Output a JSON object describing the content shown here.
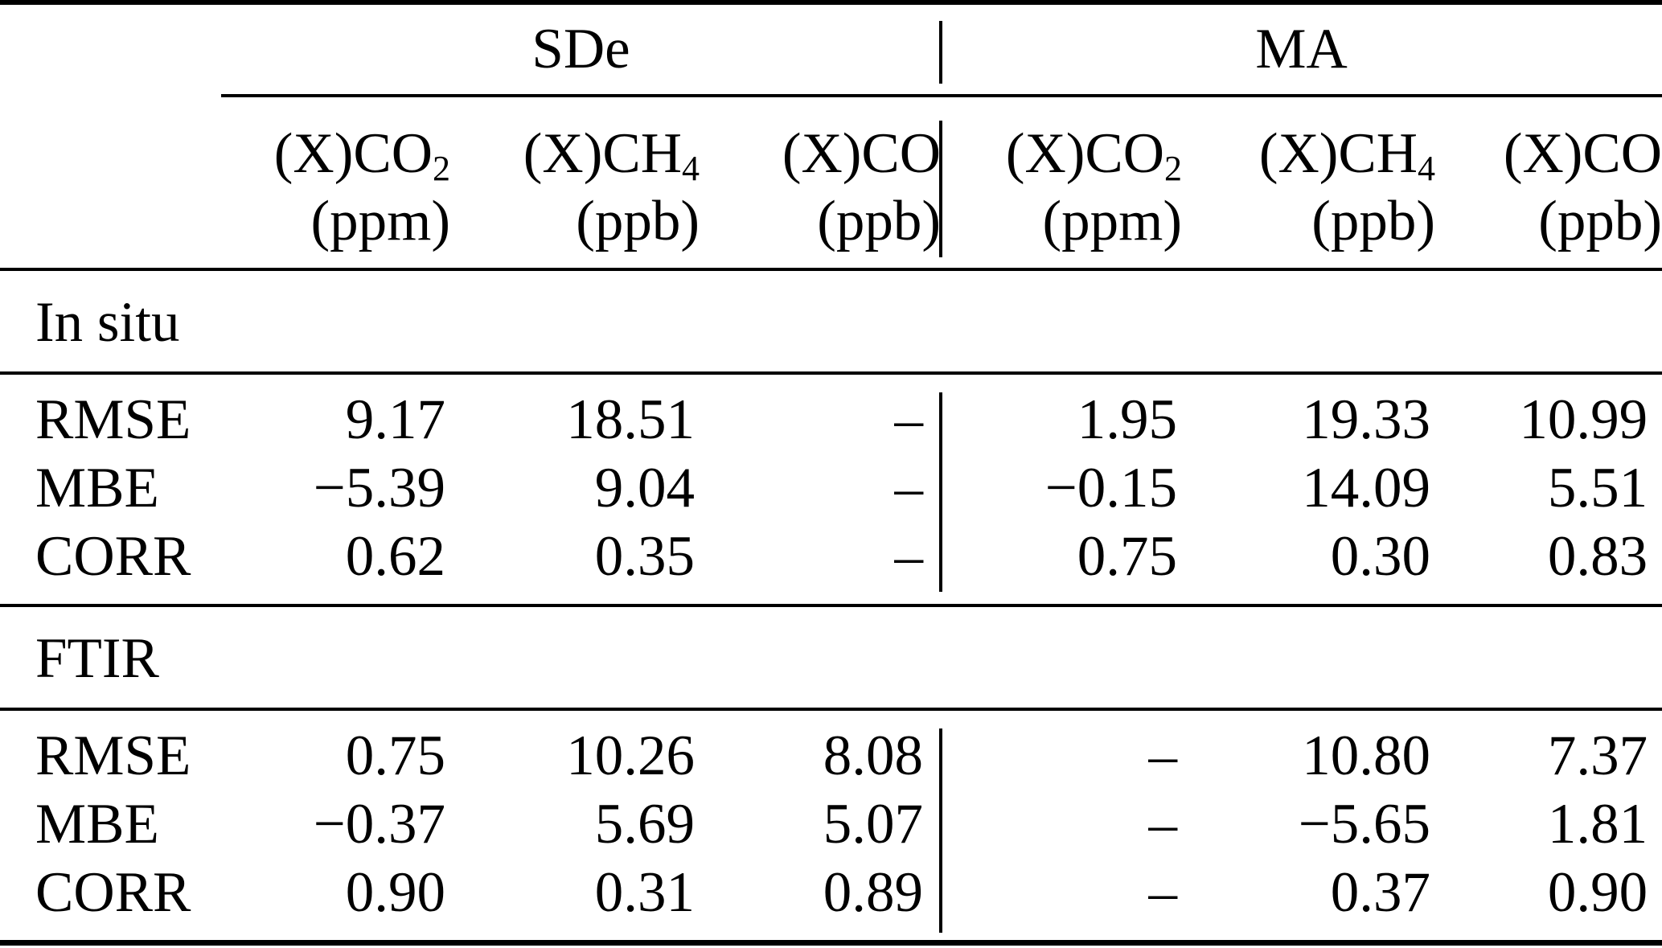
{
  "table": {
    "description": "Statistics table comparing SDe and MA for in situ and FTIR measurements",
    "text_color": "#000000",
    "background_color": "#ffffff",
    "groups": [
      {
        "label": "SDe"
      },
      {
        "label": "MA"
      }
    ],
    "columns": [
      {
        "species": "(X)CO",
        "subscript": "2",
        "unit": "(ppm)"
      },
      {
        "species": "(X)CH",
        "subscript": "4",
        "unit": "(ppb)"
      },
      {
        "species": "(X)CO",
        "subscript": "",
        "unit": "(ppb)"
      },
      {
        "species": "(X)CO",
        "subscript": "2",
        "unit": "(ppm)"
      },
      {
        "species": "(X)CH",
        "subscript": "4",
        "unit": "(ppb)"
      },
      {
        "species": "(X)CO",
        "subscript": "",
        "unit": "(ppb)"
      }
    ],
    "sections": [
      {
        "label": "In situ",
        "rows": [
          {
            "label": "RMSE",
            "values": [
              "9.17",
              "18.51",
              "–",
              "1.95",
              "19.33",
              "10.99"
            ]
          },
          {
            "label": "MBE",
            "values": [
              "−5.39",
              "9.04",
              "–",
              "−0.15",
              "14.09",
              "5.51"
            ]
          },
          {
            "label": "CORR",
            "values": [
              "0.62",
              "0.35",
              "–",
              "0.75",
              "0.30",
              "0.83"
            ]
          }
        ]
      },
      {
        "label": "FTIR",
        "rows": [
          {
            "label": "RMSE",
            "values": [
              "0.75",
              "10.26",
              "8.08",
              "–",
              "10.80",
              "7.37"
            ]
          },
          {
            "label": "MBE",
            "values": [
              "−0.37",
              "5.69",
              "5.07",
              "–",
              "−5.65",
              "1.81"
            ]
          },
          {
            "label": "CORR",
            "values": [
              "0.90",
              "0.31",
              "0.89",
              "–",
              "0.37",
              "0.90"
            ]
          }
        ]
      }
    ]
  }
}
